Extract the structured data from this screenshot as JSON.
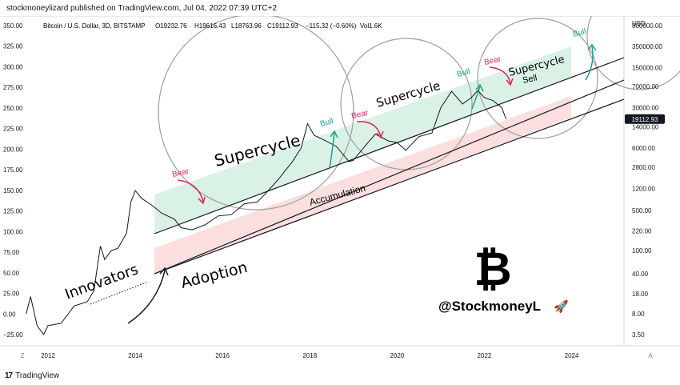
{
  "header": {
    "published": "stockmoneylizard published on TradingView.com, Jul 04, 2022 07:39 UTC+2"
  },
  "footer": {
    "logo": "17",
    "brand": "TradingView"
  },
  "chart_data": {
    "type": "line",
    "symbol_line": "Bitcoin / U.S. Dollar, 3D, BITSTAMP",
    "ohlc": {
      "open": "O19232.76",
      "high": "H19616.43",
      "low": "L18763.96",
      "close": "C19112.93",
      "change": "−115.32 (−0.60%)",
      "volume": "Vol1.6K"
    },
    "left_axis": {
      "ticks": [
        "350.00",
        "325.00",
        "300.00",
        "275.00",
        "250.00",
        "225.00",
        "200.00",
        "175.00",
        "150.00",
        "125.00",
        "100.00",
        "75.00",
        "50.00",
        "25.00",
        "0.00",
        "−25.00"
      ],
      "range": [
        -25,
        350
      ]
    },
    "right_axis": {
      "unit": "USD",
      "scale": "log",
      "ticks": [
        "800000.00",
        "350000.00",
        "150000.00",
        "70000.00",
        "30000.00",
        "14000.00",
        "6000.00",
        "2800.00",
        "1200.00",
        "500.00",
        "220.00",
        "100.00",
        "40.00",
        "18.00",
        "8.00",
        "3.50"
      ],
      "last_price": "19112.93"
    },
    "x_axis": {
      "ticks": [
        "2012",
        "2014",
        "2016",
        "2018",
        "2020",
        "2022",
        "2024"
      ],
      "range": [
        2010.9,
        2025.2
      ],
      "left_corner": "Z",
      "right_corner": "A"
    },
    "series": [
      {
        "x": [
          2011.5,
          2011.6,
          2011.75,
          2011.9,
          2012.0,
          2012.3,
          2012.6,
          2012.9,
          2013.05,
          2013.2,
          2013.3,
          2013.45,
          2013.6,
          2013.8,
          2013.9,
          2014.0,
          2014.15,
          2014.4,
          2014.6,
          2014.9,
          2015.05,
          2015.3,
          2015.6,
          2015.9,
          2016.2,
          2016.5,
          2016.8,
          2017.0,
          2017.3,
          2017.6,
          2017.8,
          2017.95,
          2018.1,
          2018.3,
          2018.6,
          2018.9,
          2019.0,
          2019.3,
          2019.5,
          2019.8,
          2020.0,
          2020.2,
          2020.5,
          2020.8,
          2021.0,
          2021.25,
          2021.5,
          2021.7,
          2021.85,
          2022.0,
          2022.2,
          2022.4,
          2022.5
        ],
        "y": [
          8,
          16,
          5,
          3.5,
          5,
          5.5,
          11,
          13,
          20,
          120,
          70,
          100,
          110,
          200,
          700,
          1100,
          800,
          600,
          450,
          350,
          250,
          230,
          280,
          400,
          420,
          650,
          700,
          1000,
          1800,
          3500,
          6000,
          16000,
          10000,
          8500,
          6500,
          3500,
          3700,
          7000,
          10500,
          8000,
          7500,
          5500,
          9500,
          11000,
          30000,
          58000,
          35000,
          45000,
          60000,
          45000,
          40000,
          30000,
          19000
        ]
      }
    ],
    "annotations": {
      "supercycle": "Supercycle",
      "bear": "Bear",
      "bull": "Bull",
      "sell": "Sell",
      "innovators": "Innovators",
      "adoption": "Adoption",
      "accumulation": "Accumulation",
      "handle": "@StockmoneyL",
      "bitcoin_symbol": "₿",
      "rocket": "🚀"
    },
    "colors": {
      "price": "#131722",
      "supercycle_zone": "#d4f0e2",
      "accumulation_zone": "#fbdcdc",
      "bear_arrow": "#e0245e",
      "bull_arrow": "#1d9e8e",
      "circle": "#888888"
    },
    "grid": false
  }
}
